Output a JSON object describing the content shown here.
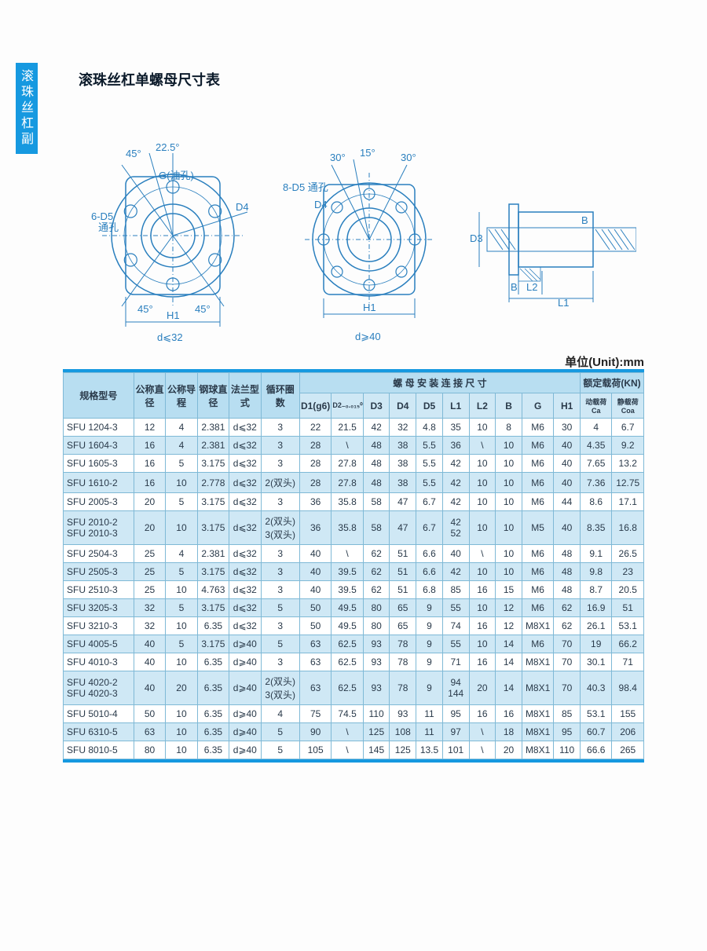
{
  "side_tab": "滚珠丝杠副",
  "title": "滚珠丝杠单螺母尺寸表",
  "unit": "单位(Unit):mm",
  "diagrams": {
    "left_caption": "d⩽32",
    "mid_caption": "d⩾40",
    "label_H1": "H1",
    "label_D4": "D4",
    "label_6D5": "6-D5",
    "label_6D5_b": "通孔",
    "label_8D5": "8-D5 通孔",
    "label_G": "G(油孔)",
    "label_45": "45°",
    "label_225": "22.5°",
    "label_30": "30°",
    "label_15": "15°",
    "label_D3": "D3",
    "label_B": "B",
    "label_L1": "L1",
    "label_L2": "L2"
  },
  "header": {
    "model": "规格型号",
    "nom_dia": "公称直径",
    "nom_lead": "公称导程",
    "ball_dia": "钢球直径",
    "flange": "法兰型式",
    "cycles": "循环圈数",
    "nut_dims": "螺 母 安 装 连 接  尺 寸",
    "load": "额定载荷(KN)",
    "D1": "D1(g6)",
    "D2": "D2₋₀.₀₁₅⁰",
    "D3": "D3",
    "D4": "D4",
    "D5": "D5",
    "L1": "L1",
    "L2": "L2",
    "B": "B",
    "G": "G",
    "H1": "H1",
    "Ca": "动载荷Ca",
    "Coa": "静载荷Coa"
  },
  "rows": [
    [
      "SFU 1204-3",
      "12",
      "4",
      "2.381",
      "d⩽32",
      "3",
      "22",
      "21.5",
      "42",
      "32",
      "4.8",
      "35",
      "10",
      "8",
      "M6",
      "30",
      "4",
      "6.7"
    ],
    [
      "SFU 1604-3",
      "16",
      "4",
      "2.381",
      "d⩽32",
      "3",
      "28",
      "\\",
      "48",
      "38",
      "5.5",
      "36",
      "\\",
      "10",
      "M6",
      "40",
      "4.35",
      "9.2"
    ],
    [
      "SFU 1605-3",
      "16",
      "5",
      "3.175",
      "d⩽32",
      "3",
      "28",
      "27.8",
      "48",
      "38",
      "5.5",
      "42",
      "10",
      "10",
      "M6",
      "40",
      "7.65",
      "13.2"
    ],
    [
      "SFU 1610-2",
      "16",
      "10",
      "2.778",
      "d⩽32",
      "2(双头)",
      "28",
      "27.8",
      "48",
      "38",
      "5.5",
      "42",
      "10",
      "10",
      "M6",
      "40",
      "7.36",
      "12.75"
    ],
    [
      "SFU 2005-3",
      "20",
      "5",
      "3.175",
      "d⩽32",
      "3",
      "36",
      "35.8",
      "58",
      "47",
      "6.7",
      "42",
      "10",
      "10",
      "M6",
      "44",
      "8.6",
      "17.1"
    ],
    [
      "SFU 2010-2\nSFU 2010-3",
      "20",
      "10",
      "3.175",
      "d⩽32",
      "2(双头)\n3(双头)",
      "36",
      "35.8",
      "58",
      "47",
      "6.7",
      "42\n52",
      "10",
      "10",
      "M5",
      "40",
      "8.35",
      "16.8"
    ],
    [
      "SFU 2504-3",
      "25",
      "4",
      "2.381",
      "d⩽32",
      "3",
      "40",
      "\\",
      "62",
      "51",
      "6.6",
      "40",
      "\\",
      "10",
      "M6",
      "48",
      "9.1",
      "26.5"
    ],
    [
      "SFU 2505-3",
      "25",
      "5",
      "3.175",
      "d⩽32",
      "3",
      "40",
      "39.5",
      "62",
      "51",
      "6.6",
      "42",
      "10",
      "10",
      "M6",
      "48",
      "9.8",
      "23"
    ],
    [
      "SFU 2510-3",
      "25",
      "10",
      "4.763",
      "d⩽32",
      "3",
      "40",
      "39.5",
      "62",
      "51",
      "6.8",
      "85",
      "16",
      "15",
      "M6",
      "48",
      "8.7",
      "20.5"
    ],
    [
      "SFU 3205-3",
      "32",
      "5",
      "3.175",
      "d⩽32",
      "5",
      "50",
      "49.5",
      "80",
      "65",
      "9",
      "55",
      "10",
      "12",
      "M6",
      "62",
      "16.9",
      "51"
    ],
    [
      "SFU 3210-3",
      "32",
      "10",
      "6.35",
      "d⩽32",
      "3",
      "50",
      "49.5",
      "80",
      "65",
      "9",
      "74",
      "16",
      "12",
      "M8X1",
      "62",
      "26.1",
      "53.1"
    ],
    [
      "SFU 4005-5",
      "40",
      "5",
      "3.175",
      "d⩾40",
      "5",
      "63",
      "62.5",
      "93",
      "78",
      "9",
      "55",
      "10",
      "14",
      "M6",
      "70",
      "19",
      "66.2"
    ],
    [
      "SFU 4010-3",
      "40",
      "10",
      "6.35",
      "d⩾40",
      "3",
      "63",
      "62.5",
      "93",
      "78",
      "9",
      "71",
      "16",
      "14",
      "M8X1",
      "70",
      "30.1",
      "71"
    ],
    [
      "SFU 4020-2\nSFU 4020-3",
      "40",
      "20",
      "6.35",
      "d⩾40",
      "2(双头)\n3(双头)",
      "63",
      "62.5",
      "93",
      "78",
      "9",
      "94\n144",
      "20",
      "14",
      "M8X1",
      "70",
      "40.3",
      "98.4"
    ],
    [
      "SFU 5010-4",
      "50",
      "10",
      "6.35",
      "d⩾40",
      "4",
      "75",
      "74.5",
      "110",
      "93",
      "11",
      "95",
      "16",
      "16",
      "M8X1",
      "85",
      "53.1",
      "155"
    ],
    [
      "SFU 6310-5",
      "63",
      "10",
      "6.35",
      "d⩾40",
      "5",
      "90",
      "\\",
      "125",
      "108",
      "11",
      "97",
      "\\",
      "18",
      "M8X1",
      "95",
      "60.7",
      "206"
    ],
    [
      "SFU 8010-5",
      "80",
      "10",
      "6.35",
      "d⩾40",
      "5",
      "105",
      "\\",
      "145",
      "125",
      "13.5",
      "101",
      "\\",
      "20",
      "M8X1",
      "110",
      "66.6",
      "265"
    ]
  ],
  "colors": {
    "accent": "#1699e0",
    "header_bg": "#cfe8f5",
    "diagram_stroke": "#2a7fbe",
    "border": "#7fb9d6"
  }
}
